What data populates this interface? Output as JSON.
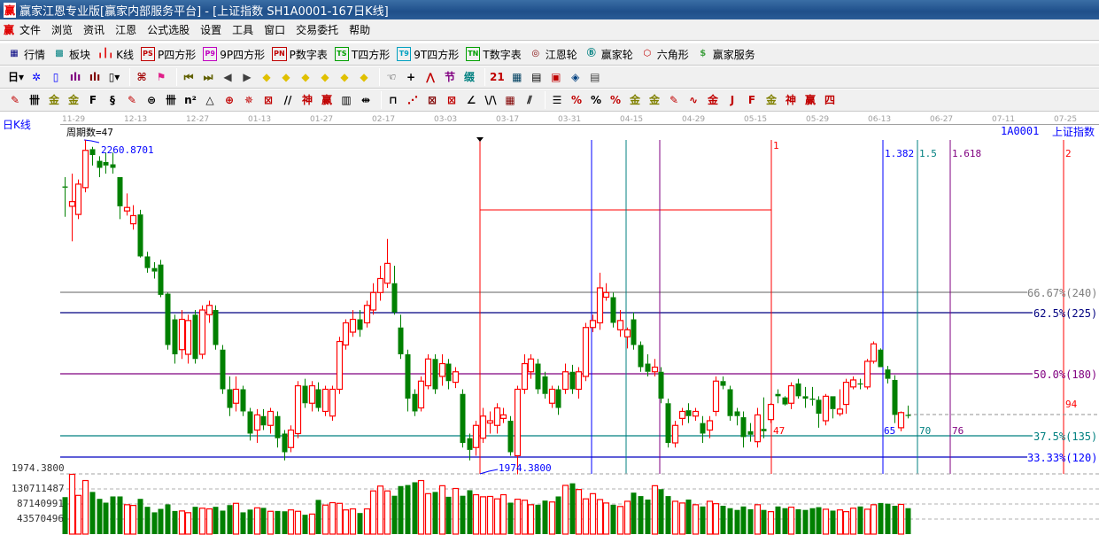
{
  "window": {
    "title": "赢家江恩专业版[赢家内部服务平台] - [上证指数  SH1A0001-167日K线]",
    "logo": "赢"
  },
  "menu": {
    "logo": "赢",
    "items": [
      "文件",
      "浏览",
      "资讯",
      "江恩",
      "公式选股",
      "设置",
      "工具",
      "窗口",
      "交易委托",
      "帮助"
    ]
  },
  "toolbar1": [
    {
      "icon": "quote-table-icon",
      "glyph": "▦",
      "color": "#000080",
      "label": "行情"
    },
    {
      "icon": "sector-icon",
      "glyph": "▩",
      "color": "#008080",
      "label": "板块"
    },
    {
      "icon": "kline-icon",
      "glyph": "╻┃╻",
      "color": "#e00000",
      "label": "K线"
    },
    {
      "icon": "ps-icon",
      "glyph": "PS",
      "color": "#c00000",
      "boxed": true,
      "label": "P四方形"
    },
    {
      "icon": "p9-icon",
      "glyph": "P9",
      "color": "#c000c0",
      "boxed": true,
      "label": "9P四方形"
    },
    {
      "icon": "pn-icon",
      "glyph": "PN",
      "color": "#c00000",
      "boxed": true,
      "label": "P数字表"
    },
    {
      "icon": "ts-icon",
      "glyph": "TS",
      "color": "#00a000",
      "boxed": true,
      "label": "T四方形"
    },
    {
      "icon": "t9-icon",
      "glyph": "T9",
      "color": "#00a0c0",
      "boxed": true,
      "label": "9T四方形"
    },
    {
      "icon": "tn-icon",
      "glyph": "TN",
      "color": "#00a000",
      "boxed": true,
      "label": "T数字表"
    },
    {
      "icon": "gann-wheel-icon",
      "glyph": "◎",
      "color": "#800000",
      "label": "江恩轮"
    },
    {
      "icon": "big-wheel-icon",
      "glyph": "Ⓑ",
      "color": "#008080",
      "label": "赢家轮"
    },
    {
      "icon": "hexagon-icon",
      "glyph": "⬡",
      "color": "#c00000",
      "label": "六角形"
    },
    {
      "icon": "dollar-icon",
      "glyph": "$",
      "color": "#40a040",
      "label": "赢家服务"
    }
  ],
  "toolbar2": [
    {
      "icon": "period-day-dropdown",
      "glyph": "日▾",
      "color": "#000"
    },
    {
      "icon": "pattern-icon",
      "glyph": "✲",
      "color": "#0000ff"
    },
    {
      "icon": "clipboard-icon",
      "glyph": "▯",
      "color": "#0000ff"
    },
    {
      "icon": "bars3-icon",
      "glyph": "ılı",
      "color": "#800080"
    },
    {
      "icon": "bars9-icon",
      "glyph": "ılı",
      "color": "#800000"
    },
    {
      "icon": "candle-type-dropdown",
      "glyph": "▯▾",
      "color": "#000"
    },
    {
      "sep": true
    },
    {
      "icon": "map-icon",
      "glyph": "⌘",
      "color": "#a00000"
    },
    {
      "icon": "flag-icon",
      "glyph": "⚑",
      "color": "#e0208a"
    },
    {
      "sep": true
    },
    {
      "icon": "first-icon",
      "glyph": "⏮",
      "color": "#606000"
    },
    {
      "icon": "last-icon",
      "glyph": "⏭",
      "color": "#606000"
    },
    {
      "icon": "left-icon",
      "glyph": "◀",
      "color": "#404040"
    },
    {
      "icon": "right-icon",
      "glyph": "▶",
      "color": "#404040"
    },
    {
      "icon": "move-left-icon",
      "glyph": "◆",
      "color": "#e0c000"
    },
    {
      "icon": "move-down-icon",
      "glyph": "◆",
      "color": "#e0c000"
    },
    {
      "icon": "zoom-h-icon",
      "glyph": "◆",
      "color": "#e0c000"
    },
    {
      "icon": "zoom-in-icon",
      "glyph": "◆",
      "color": "#e0c000"
    },
    {
      "icon": "zoom-out-icon",
      "glyph": "◆",
      "color": "#e0c000"
    },
    {
      "icon": "zoom-v-icon",
      "glyph": "◆",
      "color": "#e0c000"
    },
    {
      "sep": true
    },
    {
      "icon": "hand-icon",
      "glyph": "☜",
      "color": "#000"
    },
    {
      "icon": "crosshair-icon",
      "glyph": "+",
      "color": "#000"
    },
    {
      "icon": "line-draw-icon",
      "glyph": "⋀",
      "color": "#c00000"
    },
    {
      "icon": "tree-icon",
      "glyph": "节",
      "color": "#800080"
    },
    {
      "icon": "pattern2-icon",
      "glyph": "缀",
      "color": "#008080"
    },
    {
      "sep": true
    },
    {
      "icon": "calendar-icon",
      "glyph": "21",
      "color": "#c00000"
    },
    {
      "icon": "calculator-icon",
      "glyph": "▦",
      "color": "#004060"
    },
    {
      "icon": "notes-icon",
      "glyph": "▤",
      "color": "#000"
    },
    {
      "icon": "save-icon",
      "glyph": "▣",
      "color": "#c00000"
    },
    {
      "icon": "network-icon",
      "glyph": "◈",
      "color": "#004080"
    },
    {
      "icon": "print-icon",
      "glyph": "▤",
      "color": "#404040"
    }
  ],
  "toolbar3": [
    {
      "icon": "pen-icon",
      "glyph": "✎",
      "color": "#c00000"
    },
    {
      "icon": "lines-icon",
      "glyph": "卌",
      "color": "#000"
    },
    {
      "icon": "gold-icon",
      "glyph": "金",
      "color": "#808000"
    },
    {
      "icon": "gold2-icon",
      "glyph": "金",
      "color": "#808000"
    },
    {
      "icon": "f-lines-icon",
      "glyph": "F",
      "color": "#000"
    },
    {
      "icon": "spiral-icon",
      "glyph": "§",
      "color": "#000"
    },
    {
      "icon": "pen2-icon",
      "glyph": "✎",
      "color": "#c00000"
    },
    {
      "icon": "circle-lines-icon",
      "glyph": "⊜",
      "color": "#000"
    },
    {
      "icon": "hash-icon",
      "glyph": "卌",
      "color": "#000"
    },
    {
      "icon": "n2-icon",
      "glyph": "n²",
      "color": "#000"
    },
    {
      "icon": "triangle-icon",
      "glyph": "△",
      "color": "#000"
    },
    {
      "icon": "target-icon",
      "glyph": "⊕",
      "color": "#c00000"
    },
    {
      "icon": "web-icon",
      "glyph": "✵",
      "color": "#c00000"
    },
    {
      "icon": "box-web-icon",
      "glyph": "⊠",
      "color": "#c00000"
    },
    {
      "icon": "parallel-icon",
      "glyph": "//",
      "color": "#000"
    },
    {
      "icon": "shen-icon",
      "glyph": "神",
      "color": "#c00000"
    },
    {
      "icon": "ying-icon",
      "glyph": "赢",
      "color": "#c00000"
    },
    {
      "icon": "ruler-icon",
      "glyph": "▥",
      "color": "#000"
    },
    {
      "icon": "measure-icon",
      "glyph": "⇹",
      "color": "#000"
    },
    {
      "sep": true
    },
    {
      "icon": "rect-icon",
      "glyph": "⊓",
      "color": "#000"
    },
    {
      "icon": "fan-icon",
      "glyph": "⋰",
      "color": "#c00000"
    },
    {
      "icon": "gann-box-icon",
      "glyph": "⊠",
      "color": "#800000"
    },
    {
      "icon": "gann-grid-icon",
      "glyph": "⊠",
      "color": "#c00000"
    },
    {
      "icon": "angle-icon",
      "glyph": "∠",
      "color": "#000"
    },
    {
      "icon": "zigzag-icon",
      "glyph": "\\/\\",
      "color": "#000"
    },
    {
      "icon": "grid-icon",
      "glyph": "▦",
      "color": "#800000"
    },
    {
      "icon": "channel-icon",
      "glyph": "⫽",
      "color": "#000"
    },
    {
      "sep": true
    },
    {
      "icon": "fib-lines-icon",
      "glyph": "☰",
      "color": "#000"
    },
    {
      "icon": "percent-line-icon",
      "glyph": "%",
      "color": "#c00000"
    },
    {
      "icon": "percent-icon",
      "glyph": "%",
      "color": "#000"
    },
    {
      "icon": "percent-levels-icon",
      "glyph": "%",
      "color": "#c00000"
    },
    {
      "icon": "gold-circle-icon",
      "glyph": "金",
      "color": "#808000"
    },
    {
      "icon": "gold-levels-icon",
      "glyph": "金",
      "color": "#808000"
    },
    {
      "icon": "tools-icon",
      "glyph": "✎",
      "color": "#c00000"
    },
    {
      "icon": "wave-icon",
      "glyph": "∿",
      "color": "#c00000"
    },
    {
      "icon": "gold-red-icon",
      "glyph": "金",
      "color": "#c00000"
    },
    {
      "icon": "j-angle-icon",
      "glyph": "J",
      "color": "#c00000"
    },
    {
      "icon": "f-angle-icon",
      "glyph": "F",
      "color": "#c00000"
    },
    {
      "icon": "gold-angle-icon",
      "glyph": "金",
      "color": "#808000"
    },
    {
      "icon": "shen-angle-icon",
      "glyph": "神",
      "color": "#c00000"
    },
    {
      "icon": "ying-angle-icon",
      "glyph": "赢",
      "color": "#c00000"
    },
    {
      "icon": "four-angle-icon",
      "glyph": "四",
      "color": "#c00000"
    }
  ],
  "chart": {
    "period_label": "日K线",
    "cycle_count": "周期数=47",
    "symbol": "1A0001",
    "name": "上证指数",
    "high_label": "2260.8701",
    "low_label": "1974.3800",
    "low_axis_label": "1974.3800",
    "dates": [
      "11-29",
      "12-13",
      "12-27",
      "01-13",
      "01-27",
      "02-17",
      "03-03",
      "03-17",
      "03-31",
      "04-15",
      "04-29",
      "05-15",
      "05-29",
      "06-13",
      "06-27",
      "07-11",
      "07-25"
    ],
    "time_ratios": [
      "1",
      "1.382",
      "1.5",
      "1.618",
      "2"
    ],
    "bar_counts": [
      "47",
      "65",
      "70",
      "76",
      "94"
    ],
    "levels": [
      "66.67%(240)",
      "62.5%(225)",
      "50.0%(180)",
      "37.5%(135)",
      "33.33%(120)"
    ],
    "volume_axis": [
      "130711487",
      "87140991",
      "43570496"
    ],
    "colors": {
      "up": "#ff0000",
      "down": "#008000",
      "ratio_1": "#ff0000",
      "ratio_1382": "#0000ff",
      "ratio_15": "#008080",
      "ratio_1618": "#800080",
      "ratio_2": "#ff0000"
    }
  },
  "chart_data": {
    "type": "candlestick",
    "fields": [
      "open",
      "close",
      "high",
      "low"
    ],
    "candles": [
      [
        2221,
        2220,
        2229,
        2195
      ],
      [
        2204,
        2208,
        2232,
        2174
      ],
      [
        2197,
        2223,
        2227,
        2193
      ],
      [
        2220,
        2252,
        2261,
        2216
      ],
      [
        2253,
        2248,
        2255,
        2239
      ],
      [
        2243,
        2237,
        2247,
        2229
      ],
      [
        2242,
        2239,
        2250,
        2232
      ],
      [
        2240,
        2237,
        2250,
        2232
      ],
      [
        2229,
        2204,
        2229,
        2193
      ],
      [
        2200,
        2203,
        2215,
        2196
      ],
      [
        2189,
        2196,
        2205,
        2184
      ],
      [
        2197,
        2161,
        2201,
        2160
      ],
      [
        2161,
        2151,
        2165,
        2147
      ],
      [
        2151,
        2148,
        2156,
        2142
      ],
      [
        2154,
        2128,
        2158,
        2126
      ],
      [
        2129,
        2085,
        2130,
        2081
      ],
      [
        2107,
        2077,
        2111,
        2069
      ],
      [
        2081,
        2107,
        2115,
        2073
      ],
      [
        2077,
        2106,
        2111,
        2069
      ],
      [
        2111,
        2073,
        2115,
        2069
      ],
      [
        2077,
        2115,
        2119,
        2073
      ],
      [
        2111,
        2119,
        2123,
        2104
      ],
      [
        2115,
        2085,
        2119,
        2081
      ],
      [
        2081,
        2047,
        2085,
        2043
      ],
      [
        2047,
        2031,
        2058,
        2024
      ],
      [
        2035,
        2047,
        2058,
        2028
      ],
      [
        2047,
        2028,
        2050,
        2024
      ],
      [
        2028,
        2009,
        2031,
        2003
      ],
      [
        2012,
        2025,
        2030,
        2001
      ],
      [
        2024,
        2016,
        2030,
        2012
      ],
      [
        2016,
        2028,
        2031,
        2009
      ],
      [
        2024,
        2005,
        2028,
        1997
      ],
      [
        2009,
        1993,
        2012,
        1986
      ],
      [
        1997,
        2012,
        2016,
        1993
      ],
      [
        2009,
        2050,
        2054,
        2005
      ],
      [
        2050,
        2035,
        2056,
        2031
      ],
      [
        2035,
        2050,
        2054,
        2028
      ],
      [
        2047,
        2031,
        2053,
        2028
      ],
      [
        2028,
        2047,
        2050,
        2024
      ],
      [
        2024,
        2047,
        2050,
        2020
      ],
      [
        2047,
        2088,
        2092,
        2043
      ],
      [
        2085,
        2104,
        2107,
        2081
      ],
      [
        2096,
        2107,
        2115,
        2092
      ],
      [
        2107,
        2098,
        2115,
        2092
      ],
      [
        2104,
        2119,
        2123,
        2100
      ],
      [
        2115,
        2130,
        2138,
        2111
      ],
      [
        2130,
        2142,
        2153,
        2123
      ],
      [
        2138,
        2155,
        2176,
        2134
      ],
      [
        2138,
        2113,
        2153,
        2111
      ],
      [
        2100,
        2077,
        2111,
        2073
      ],
      [
        2077,
        2039,
        2081,
        2028
      ],
      [
        2043,
        2028,
        2047,
        2024
      ],
      [
        2031,
        2054,
        2058,
        2028
      ],
      [
        2050,
        2073,
        2077,
        2047
      ],
      [
        2073,
        2047,
        2077,
        2043
      ],
      [
        2058,
        2069,
        2077,
        2050
      ],
      [
        2069,
        2054,
        2073,
        2047
      ],
      [
        2053,
        2062,
        2066,
        2048
      ],
      [
        2043,
        2001,
        2047,
        1997
      ],
      [
        2005,
        1995,
        2009,
        1986
      ],
      [
        1997,
        2016,
        2020,
        1990
      ],
      [
        2005,
        2024,
        2031,
        2001
      ],
      [
        2018,
        2020,
        2028,
        2009
      ],
      [
        2016,
        2031,
        2035,
        2009
      ],
      [
        2022,
        2025,
        2031,
        2018
      ],
      [
        2020,
        1993,
        2024,
        1990
      ],
      [
        1990,
        2047,
        2050,
        1974
      ],
      [
        2047,
        2069,
        2077,
        2043
      ],
      [
        2062,
        2073,
        2077,
        2056
      ],
      [
        2069,
        2047,
        2073,
        2043
      ],
      [
        2058,
        2043,
        2062,
        2039
      ],
      [
        2035,
        2047,
        2050,
        2031
      ],
      [
        2047,
        2031,
        2050,
        2025
      ],
      [
        2047,
        2062,
        2069,
        2043
      ],
      [
        2062,
        2047,
        2068,
        2043
      ],
      [
        2047,
        2062,
        2066,
        2039
      ],
      [
        2058,
        2100,
        2104,
        2054
      ],
      [
        2100,
        2106,
        2111,
        2096
      ],
      [
        2104,
        2134,
        2147,
        2098
      ],
      [
        2126,
        2130,
        2138,
        2123
      ],
      [
        2126,
        2104,
        2130,
        2100
      ],
      [
        2098,
        2106,
        2115,
        2092
      ],
      [
        2092,
        2098,
        2100,
        2082
      ],
      [
        2107,
        2085,
        2113,
        2081
      ],
      [
        2085,
        2066,
        2088,
        2062
      ],
      [
        2069,
        2062,
        2077,
        2058
      ],
      [
        2062,
        2066,
        2073,
        2058
      ],
      [
        2062,
        2039,
        2066,
        2035
      ],
      [
        2035,
        2001,
        2039,
        1997
      ],
      [
        2001,
        2016,
        2020,
        1997
      ],
      [
        2022,
        2028,
        2031,
        2016
      ],
      [
        2029,
        2024,
        2035,
        2018
      ],
      [
        2024,
        2028,
        2031,
        2020
      ],
      [
        2018,
        2009,
        2024,
        2001
      ],
      [
        2012,
        2020,
        2024,
        2005
      ],
      [
        2028,
        2054,
        2058,
        2024
      ],
      [
        2054,
        2050,
        2058,
        2047
      ],
      [
        2047,
        2024,
        2050,
        2020
      ],
      [
        2028,
        2024,
        2031,
        2016
      ],
      [
        2023,
        2006,
        2028,
        1997
      ],
      [
        2011,
        2008,
        2018,
        2002
      ],
      [
        2002,
        2025,
        2031,
        1997
      ],
      [
        2013,
        2011,
        2040,
        2005
      ],
      [
        2021,
        2034,
        2035,
        2018
      ],
      [
        2043,
        2041,
        2047,
        2035
      ],
      [
        2040,
        2034,
        2041,
        2033
      ],
      [
        2035,
        2050,
        2053,
        2030
      ],
      [
        2052,
        2041,
        2056,
        2039
      ],
      [
        2041,
        2039,
        2049,
        2031
      ],
      [
        2039,
        2038,
        2049,
        2033
      ],
      [
        2038,
        2026,
        2041,
        2014
      ],
      [
        2020,
        2041,
        2043,
        2016
      ],
      [
        2041,
        2030,
        2041,
        2022
      ],
      [
        2026,
        2030,
        2047,
        2024
      ],
      [
        2034,
        2053,
        2056,
        2026
      ],
      [
        2049,
        2055,
        2058,
        2047
      ],
      [
        2052,
        2052,
        2056,
        2047
      ],
      [
        2049,
        2071,
        2073,
        2047
      ],
      [
        2071,
        2086,
        2088,
        2069
      ],
      [
        2081,
        2066,
        2082,
        2066
      ],
      [
        2064,
        2056,
        2067,
        2052
      ],
      [
        2055,
        2025,
        2059,
        2018
      ],
      [
        2014,
        2027,
        2028,
        2011
      ],
      [
        2025,
        2025,
        2033,
        2022
      ]
    ],
    "volume_millions": [
      107,
      173,
      112,
      155,
      122,
      102,
      91,
      109,
      109,
      85,
      83,
      102,
      79,
      63,
      73,
      86,
      67,
      67,
      62,
      79,
      75,
      73,
      79,
      68,
      84,
      89,
      63,
      71,
      76,
      76,
      66,
      67,
      66,
      70,
      66,
      56,
      58,
      99,
      84,
      91,
      89,
      70,
      73,
      61,
      73,
      125,
      139,
      125,
      111,
      139,
      142,
      150,
      155,
      117,
      122,
      140,
      108,
      132,
      111,
      127,
      114,
      108,
      109,
      102,
      114,
      91,
      101,
      98,
      85,
      85,
      97,
      93,
      109,
      141,
      147,
      129,
      102,
      117,
      100,
      90,
      85,
      80,
      95,
      120,
      110,
      100,
      140,
      130,
      110,
      95,
      90,
      100,
      85,
      80,
      95,
      88,
      82,
      75,
      70,
      80,
      72,
      85,
      70,
      65,
      80,
      75,
      78,
      72,
      70,
      75,
      78,
      72,
      68,
      70,
      65,
      75,
      80,
      72,
      85,
      90,
      88,
      82,
      86,
      75
    ],
    "high": 2260.8701,
    "low": 1974.38
  }
}
